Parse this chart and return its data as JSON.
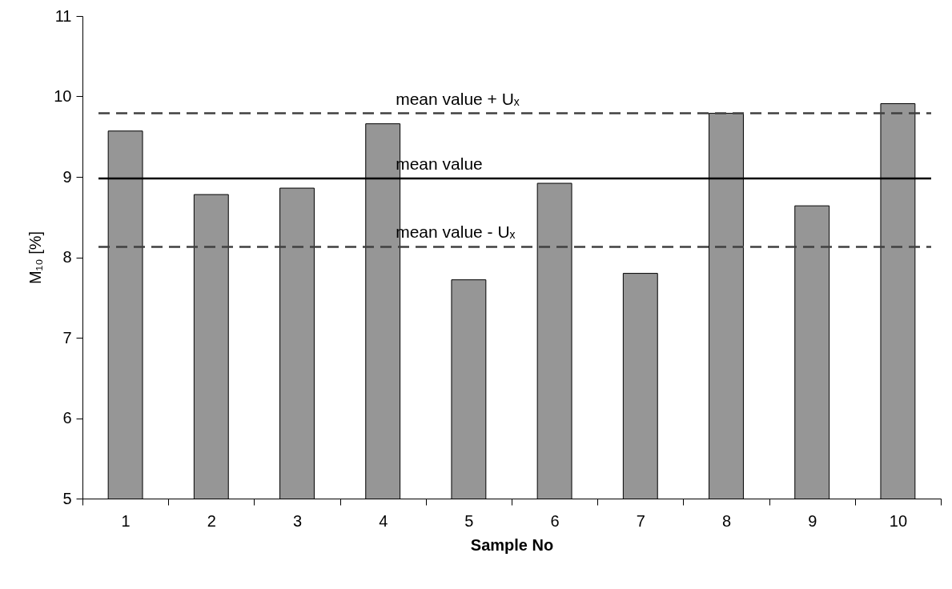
{
  "chart_data": {
    "type": "bar",
    "xlabel": "Sample No",
    "ylabel": "M₁₀ [%]",
    "categories": [
      "1",
      "2",
      "3",
      "4",
      "5",
      "6",
      "7",
      "8",
      "9",
      "10"
    ],
    "series": [
      {
        "color": "#969696",
        "values": [
          9.57,
          8.78,
          8.86,
          9.66,
          7.72,
          8.92,
          7.8,
          9.79,
          8.64,
          9.91
        ]
      }
    ],
    "ylim": [
      5,
      11
    ],
    "yticks": [
      5,
      6,
      7,
      8,
      9,
      10,
      11
    ],
    "grid": false,
    "ref_lines": [
      {
        "axis": "y",
        "value": 9.79,
        "label": "mean value + Uₓ",
        "color": "#404040",
        "line_style": "dashed"
      },
      {
        "axis": "y",
        "value": 8.98,
        "label": "mean value",
        "color": "#000000",
        "line_style": "solid"
      },
      {
        "axis": "y",
        "value": 8.13,
        "label": "mean value - Uₓ",
        "color": "#404040",
        "line_style": "dashed"
      }
    ]
  }
}
